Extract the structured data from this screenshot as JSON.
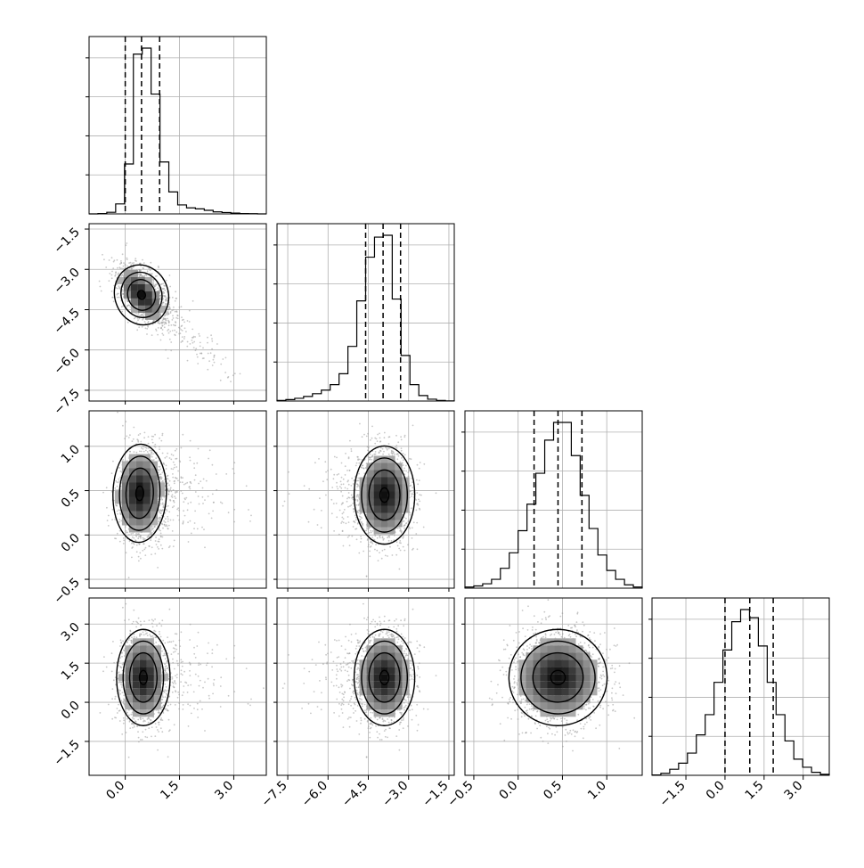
{
  "chart_data": {
    "type": "corner",
    "title": "",
    "parameters": 4,
    "grid": true,
    "quantile_lines": "dashed",
    "axes": [
      {
        "range": [
          -1.0,
          3.9
        ],
        "ticks": [
          0.0,
          1.5,
          3.0
        ],
        "tick_labels": [
          "0.0",
          "1.5",
          "3.0"
        ],
        "mean": 0.5,
        "sd": 0.36,
        "skew_tail": 1.2,
        "quantiles": [
          0.0,
          0.45,
          0.95
        ]
      },
      {
        "range": [
          -7.9,
          -1.3
        ],
        "ticks": [
          -7.5,
          -6.0,
          -4.5,
          -3.0,
          -1.5
        ],
        "tick_labels": [
          "−7.5",
          "−6.0",
          "−4.5",
          "−3.0",
          "−1.5"
        ],
        "mean": -3.95,
        "sd": 0.55,
        "skew_tail": -1.2,
        "quantiles": [
          -4.6,
          -3.95,
          -3.3
        ]
      },
      {
        "range": [
          -0.6,
          1.4
        ],
        "ticks": [
          -0.5,
          0.0,
          0.5,
          1.0
        ],
        "tick_labels": [
          "−0.5",
          "0.0",
          "0.5",
          "1.0"
        ],
        "mean": 0.45,
        "sd": 0.27,
        "skew_tail": 0,
        "quantiles": [
          0.18,
          0.45,
          0.72
        ]
      },
      {
        "range": [
          -2.8,
          4.0
        ],
        "ticks": [
          -1.5,
          0.0,
          1.5,
          3.0
        ],
        "tick_labels": [
          "−1.5",
          "0.0",
          "1.5",
          "3.0"
        ],
        "mean": 0.95,
        "sd": 0.9,
        "skew_tail": 0,
        "quantiles": [
          0.0,
          0.95,
          1.85
        ]
      }
    ],
    "histograms": [
      {
        "param": 0,
        "bins_x": [
          -1.0,
          -0.755,
          -0.51,
          -0.265,
          -0.02,
          0.225,
          0.47,
          0.715,
          0.96,
          1.205,
          1.45,
          1.695,
          1.94,
          2.185,
          2.43,
          2.675,
          2.92,
          3.165,
          3.41,
          3.655,
          3.9
        ],
        "counts": [
          0,
          2,
          8,
          50,
          250,
          800,
          830,
          600,
          260,
          110,
          45,
          30,
          25,
          18,
          10,
          7,
          4,
          2,
          1,
          0
        ]
      },
      {
        "param": 1,
        "bins_x": [
          -7.9,
          -7.57,
          -7.24,
          -6.91,
          -6.58,
          -6.25,
          -5.92,
          -5.59,
          -5.26,
          -4.93,
          -4.6,
          -4.27,
          -3.94,
          -3.61,
          -3.28,
          -2.95,
          -2.62,
          -2.29,
          -1.96,
          -1.63,
          -1.3
        ],
        "counts": [
          3,
          8,
          15,
          25,
          40,
          60,
          90,
          150,
          300,
          550,
          790,
          900,
          910,
          560,
          250,
          90,
          30,
          10,
          3,
          1
        ]
      },
      {
        "param": 2,
        "bins_x": [
          -0.6,
          -0.5,
          -0.4,
          -0.3,
          -0.2,
          -0.1,
          0.0,
          0.1,
          0.2,
          0.3,
          0.4,
          0.5,
          0.6,
          0.7,
          0.8,
          0.9,
          1.0,
          1.1,
          1.2,
          1.3,
          1.4
        ],
        "counts": [
          5,
          10,
          20,
          40,
          90,
          160,
          260,
          380,
          520,
          670,
          750,
          750,
          600,
          420,
          270,
          150,
          80,
          40,
          15,
          5
        ]
      },
      {
        "param": 3,
        "bins_x": [
          -2.8,
          -2.46,
          -2.12,
          -1.78,
          -1.44,
          -1.1,
          -0.76,
          -0.42,
          -0.08,
          0.26,
          0.6,
          0.94,
          1.28,
          1.62,
          1.96,
          2.3,
          2.64,
          2.98,
          3.32,
          3.66,
          4.0
        ],
        "counts": [
          2,
          10,
          30,
          60,
          110,
          200,
          300,
          460,
          620,
          760,
          820,
          780,
          640,
          460,
          300,
          170,
          80,
          40,
          15,
          5
        ]
      }
    ],
    "joint": [
      {
        "x": 0,
        "y": 1,
        "corr": -0.55,
        "inner_contour_center": [
          0.45,
          -3.95
        ]
      },
      {
        "x": 0,
        "y": 2,
        "corr": 0.05,
        "inner_contour_center": [
          0.4,
          0.47
        ]
      },
      {
        "x": 1,
        "y": 2,
        "corr": 0.0,
        "inner_contour_center": [
          -3.9,
          0.45
        ]
      },
      {
        "x": 0,
        "y": 3,
        "corr": 0.0,
        "inner_contour_center": [
          0.5,
          0.95
        ]
      },
      {
        "x": 1,
        "y": 3,
        "corr": 0.0,
        "inner_contour_center": [
          -3.9,
          0.95
        ]
      },
      {
        "x": 2,
        "y": 3,
        "corr": 0.0,
        "inner_contour_center": [
          0.45,
          0.95
        ]
      }
    ]
  }
}
